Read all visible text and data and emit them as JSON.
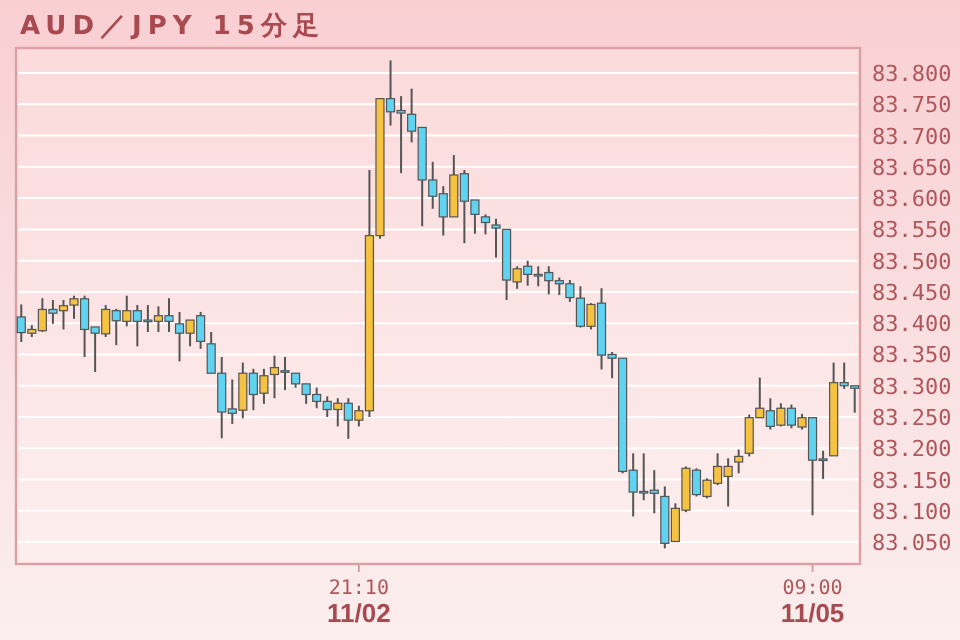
{
  "chart_data": {
    "type": "candlestick",
    "title": "AUD／JPY 15分足",
    "categories": [
      null,
      null,
      null,
      null,
      null,
      null,
      null,
      null,
      null,
      null,
      null,
      null,
      null,
      null,
      null,
      null,
      null,
      null,
      null,
      null,
      null,
      null,
      null,
      null,
      null,
      null,
      null,
      null,
      null,
      null,
      null,
      null,
      "21:10\n11/02",
      null,
      null,
      null,
      null,
      null,
      null,
      null,
      null,
      null,
      null,
      null,
      null,
      null,
      null,
      null,
      null,
      null,
      null,
      null,
      null,
      null,
      null,
      null,
      null,
      null,
      null,
      null,
      null,
      null,
      null,
      null,
      null,
      null,
      null,
      null,
      null,
      null,
      null,
      null,
      null,
      null,
      null,
      "09:00\n11/05",
      null,
      null,
      null,
      null
    ],
    "ohlc": [
      [
        83.41,
        83.43,
        83.37,
        83.385
      ],
      [
        83.384,
        83.397,
        83.378,
        83.39
      ],
      [
        83.388,
        83.44,
        83.386,
        83.422
      ],
      [
        83.422,
        83.437,
        83.399,
        83.416
      ],
      [
        83.42,
        83.437,
        83.39,
        83.428
      ],
      [
        83.429,
        83.444,
        83.407,
        83.439
      ],
      [
        83.439,
        83.444,
        83.346,
        83.39
      ],
      [
        83.394,
        83.394,
        83.322,
        83.384
      ],
      [
        83.383,
        83.429,
        83.378,
        83.422
      ],
      [
        83.42,
        83.423,
        83.365,
        83.404
      ],
      [
        83.403,
        83.444,
        83.395,
        83.42
      ],
      [
        83.42,
        83.429,
        83.363,
        83.403
      ],
      [
        83.405,
        83.429,
        83.386,
        83.405
      ],
      [
        83.403,
        83.427,
        83.386,
        83.412
      ],
      [
        83.412,
        83.44,
        83.386,
        83.403
      ],
      [
        83.399,
        83.418,
        83.339,
        83.384
      ],
      [
        83.384,
        83.405,
        83.363,
        83.405
      ],
      [
        83.412,
        83.418,
        83.359,
        83.371
      ],
      [
        83.367,
        83.386,
        83.32,
        83.32
      ],
      [
        83.32,
        83.346,
        83.216,
        83.258
      ],
      [
        83.263,
        83.31,
        83.239,
        83.256
      ],
      [
        83.261,
        83.337,
        83.248,
        83.32
      ],
      [
        83.32,
        83.327,
        83.261,
        83.286
      ],
      [
        83.288,
        83.327,
        83.271,
        83.316
      ],
      [
        83.318,
        83.348,
        83.28,
        83.329
      ],
      [
        83.324,
        83.346,
        83.293,
        83.324
      ],
      [
        83.32,
        83.32,
        83.297,
        83.303
      ],
      [
        83.303,
        83.303,
        83.271,
        83.286
      ],
      [
        83.286,
        83.297,
        83.264,
        83.275
      ],
      [
        83.275,
        83.283,
        83.25,
        83.262
      ],
      [
        83.262,
        83.28,
        83.235,
        83.272
      ],
      [
        83.272,
        83.28,
        83.215,
        83.245
      ],
      [
        83.245,
        83.268,
        83.235,
        83.26
      ],
      [
        83.26,
        83.645,
        83.25,
        83.54
      ],
      [
        83.54,
        83.76,
        83.535,
        83.759
      ],
      [
        83.759,
        83.82,
        83.716,
        83.738
      ],
      [
        83.74,
        83.763,
        83.64,
        83.736
      ],
      [
        83.734,
        83.775,
        83.689,
        83.707
      ],
      [
        83.713,
        83.713,
        83.555,
        83.629
      ],
      [
        83.629,
        83.658,
        83.583,
        83.603
      ],
      [
        83.607,
        83.619,
        83.54,
        83.57
      ],
      [
        83.57,
        83.669,
        83.57,
        83.637
      ],
      [
        83.639,
        83.645,
        83.528,
        83.595
      ],
      [
        83.597,
        83.597,
        83.543,
        83.574
      ],
      [
        83.57,
        83.574,
        83.542,
        83.561
      ],
      [
        83.557,
        83.567,
        83.505,
        83.552
      ],
      [
        83.55,
        83.55,
        83.437,
        83.469
      ],
      [
        83.466,
        83.491,
        83.455,
        83.487
      ],
      [
        83.491,
        83.5,
        83.46,
        83.478
      ],
      [
        83.478,
        83.491,
        83.459,
        83.478
      ],
      [
        83.481,
        83.491,
        83.446,
        83.468
      ],
      [
        83.468,
        83.473,
        83.445,
        83.463
      ],
      [
        83.463,
        83.469,
        83.434,
        83.441
      ],
      [
        83.44,
        83.459,
        83.393,
        83.395
      ],
      [
        83.395,
        83.432,
        83.39,
        83.43
      ],
      [
        83.432,
        83.456,
        83.326,
        83.349
      ],
      [
        83.35,
        83.354,
        83.312,
        83.344
      ],
      [
        83.344,
        83.344,
        83.16,
        83.163
      ],
      [
        83.165,
        83.192,
        83.091,
        83.13
      ],
      [
        83.131,
        83.192,
        83.117,
        83.131
      ],
      [
        83.133,
        83.165,
        83.096,
        83.128
      ],
      [
        83.123,
        83.139,
        83.04,
        83.048
      ],
      [
        83.051,
        83.112,
        83.051,
        83.104
      ],
      [
        83.101,
        83.171,
        83.098,
        83.168
      ],
      [
        83.165,
        83.168,
        83.123,
        83.126
      ],
      [
        83.123,
        83.152,
        83.12,
        83.149
      ],
      [
        83.144,
        83.192,
        83.141,
        83.171
      ],
      [
        83.155,
        83.184,
        83.107,
        83.171
      ],
      [
        83.178,
        83.198,
        83.16,
        83.187
      ],
      [
        83.192,
        83.254,
        83.187,
        83.249
      ],
      [
        83.249,
        83.313,
        83.249,
        83.264
      ],
      [
        83.26,
        83.28,
        83.23,
        83.235
      ],
      [
        83.237,
        83.272,
        83.235,
        83.264
      ],
      [
        83.264,
        83.27,
        83.232,
        83.237
      ],
      [
        83.234,
        83.255,
        83.23,
        83.249
      ],
      [
        83.249,
        83.249,
        83.093,
        83.181
      ],
      [
        83.183,
        83.196,
        83.151,
        83.183
      ],
      [
        83.188,
        83.337,
        83.188,
        83.305
      ],
      [
        83.305,
        83.337,
        83.295,
        83.3
      ],
      [
        83.3,
        83.3,
        83.257,
        83.296
      ]
    ],
    "colors": [
      "#5fd3f0",
      "#f5c242",
      "#f5c242",
      "#5fd3f0",
      "#f5c242",
      "#f5c242",
      "#5fd3f0",
      "#5fd3f0",
      "#f5c242",
      "#5fd3f0",
      "#f5c242",
      "#5fd3f0",
      "#5fd3f0",
      "#f5c242",
      "#5fd3f0",
      "#5fd3f0",
      "#f5c242",
      "#5fd3f0",
      "#5fd3f0",
      "#5fd3f0",
      "#5fd3f0",
      "#f5c242",
      "#5fd3f0",
      "#f5c242",
      "#f5c242",
      "#5fd3f0",
      "#5fd3f0",
      "#5fd3f0",
      "#5fd3f0",
      "#5fd3f0",
      "#f5c242",
      "#5fd3f0",
      "#f5c242",
      "#f5c242",
      "#f5c242",
      "#5fd3f0",
      "#5fd3f0",
      "#5fd3f0",
      "#5fd3f0",
      "#5fd3f0",
      "#5fd3f0",
      "#f5c242",
      "#5fd3f0",
      "#5fd3f0",
      "#5fd3f0",
      "#5fd3f0",
      "#5fd3f0",
      "#f5c242",
      "#5fd3f0",
      "#5fd3f0",
      "#5fd3f0",
      "#5fd3f0",
      "#5fd3f0",
      "#5fd3f0",
      "#f5c242",
      "#5fd3f0",
      "#5fd3f0",
      "#5fd3f0",
      "#5fd3f0",
      "#5fd3f0",
      "#5fd3f0",
      "#5fd3f0",
      "#f5c242",
      "#f5c242",
      "#5fd3f0",
      "#f5c242",
      "#f5c242",
      "#f5c242",
      "#f5c242",
      "#f5c242",
      "#f5c242",
      "#5fd3f0",
      "#f5c242",
      "#5fd3f0",
      "#f5c242",
      "#5fd3f0",
      "#5fd3f0",
      "#f5c242",
      "#5fd3f0",
      "#5fd3f0"
    ],
    "ylim": [
      83.015,
      83.84
    ],
    "yticks": [
      {
        "value": 83.05,
        "label": "83.050"
      },
      {
        "value": 83.1,
        "label": "83.100"
      },
      {
        "value": 83.15,
        "label": "83.150"
      },
      {
        "value": 83.2,
        "label": "83.200"
      },
      {
        "value": 83.25,
        "label": "83.250"
      },
      {
        "value": 83.3,
        "label": "83.300"
      },
      {
        "value": 83.35,
        "label": "83.350"
      },
      {
        "value": 83.4,
        "label": "83.400"
      },
      {
        "value": 83.45,
        "label": "83.450"
      },
      {
        "value": 83.5,
        "label": "83.500"
      },
      {
        "value": 83.55,
        "label": "83.550"
      },
      {
        "value": 83.6,
        "label": "83.600"
      },
      {
        "value": 83.65,
        "label": "83.650"
      },
      {
        "value": 83.7,
        "label": "83.700"
      },
      {
        "value": 83.75,
        "label": "83.750"
      },
      {
        "value": 83.8,
        "label": "83.800"
      }
    ],
    "grid": "y"
  }
}
